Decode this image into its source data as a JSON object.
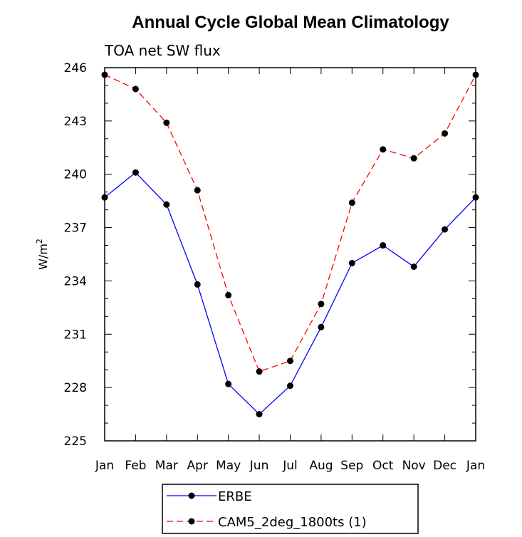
{
  "chart_data": {
    "type": "line",
    "title": "Annual Cycle Global Mean Climatology",
    "subtitle": "TOA net SW flux",
    "ylabel": "W/m",
    "ylabel_superscript": "2",
    "xlabel": "",
    "categories": [
      "Jan",
      "Feb",
      "Mar",
      "Apr",
      "May",
      "Jun",
      "Jul",
      "Aug",
      "Sep",
      "Oct",
      "Nov",
      "Dec",
      "Jan"
    ],
    "ylim": [
      225,
      246
    ],
    "yticks": [
      225,
      228,
      231,
      234,
      237,
      240,
      243,
      246
    ],
    "grid": false,
    "legend_position": "bottom",
    "series": [
      {
        "name": "ERBE",
        "color": "#0000ff",
        "dash": "solid",
        "values": [
          238.7,
          240.1,
          238.3,
          233.8,
          228.2,
          226.5,
          228.1,
          231.4,
          235.0,
          236.0,
          234.8,
          236.9,
          238.7
        ]
      },
      {
        "name": "CAM5_2deg_1800ts (1)",
        "color": "#ff0000",
        "dash": "dashed",
        "values": [
          245.6,
          244.8,
          242.9,
          239.1,
          233.2,
          228.9,
          229.5,
          232.7,
          238.4,
          241.4,
          240.9,
          242.3,
          245.6
        ]
      }
    ]
  }
}
